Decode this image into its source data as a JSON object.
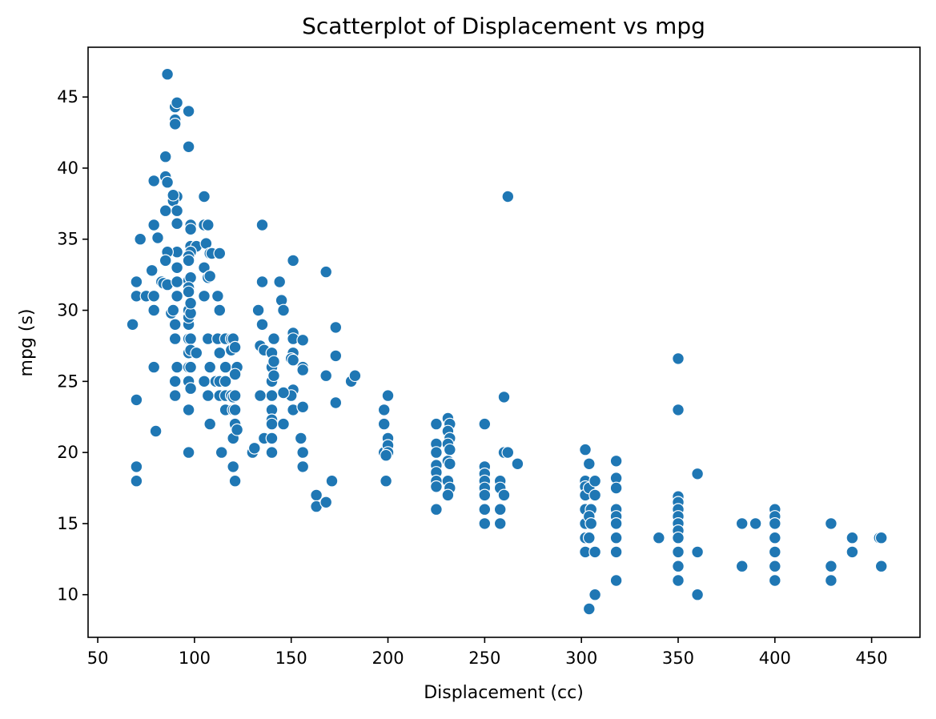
{
  "chart_data": {
    "type": "scatter",
    "title": "Scatterplot of Displacement vs mpg",
    "xlabel": "Displacement (cc)",
    "ylabel": "mpg (s)",
    "xlim": [
      45,
      475
    ],
    "ylim": [
      7,
      48.5
    ],
    "xticks": [
      50,
      100,
      150,
      200,
      250,
      300,
      350,
      400,
      450
    ],
    "yticks": [
      10,
      15,
      20,
      25,
      30,
      35,
      40,
      45
    ],
    "grid": false,
    "legend": "none",
    "point_color": "#1f77b4",
    "points": [
      [
        86,
        46.6
      ],
      [
        90,
        44.3
      ],
      [
        91,
        44.6
      ],
      [
        90,
        43.4
      ],
      [
        90,
        43.1
      ],
      [
        97,
        44
      ],
      [
        97,
        41.5
      ],
      [
        85,
        40.8
      ],
      [
        79,
        39.1
      ],
      [
        85,
        39.4
      ],
      [
        86,
        39
      ],
      [
        91,
        38
      ],
      [
        89,
        37.7
      ],
      [
        89,
        38.1
      ],
      [
        105,
        38
      ],
      [
        91,
        37
      ],
      [
        85,
        37
      ],
      [
        91,
        36.1
      ],
      [
        79,
        36
      ],
      [
        98,
        36
      ],
      [
        98,
        35.7
      ],
      [
        105,
        36
      ],
      [
        107,
        36
      ],
      [
        72,
        35
      ],
      [
        81,
        35.1
      ],
      [
        98,
        34.5
      ],
      [
        101,
        34.5
      ],
      [
        91,
        34.1
      ],
      [
        86,
        34.1
      ],
      [
        98,
        34.1
      ],
      [
        106,
        34.7
      ],
      [
        108,
        34
      ],
      [
        109,
        34
      ],
      [
        113,
        34
      ],
      [
        85,
        33.5
      ],
      [
        97,
        33.8
      ],
      [
        97,
        33.5
      ],
      [
        105,
        33
      ],
      [
        91,
        33
      ],
      [
        78,
        32.8
      ],
      [
        107,
        32.3
      ],
      [
        108,
        32.4
      ],
      [
        83,
        32
      ],
      [
        84,
        31.9
      ],
      [
        86,
        31.8
      ],
      [
        91,
        32
      ],
      [
        97,
        32.1
      ],
      [
        98,
        32.3
      ],
      [
        70,
        32
      ],
      [
        70,
        31
      ],
      [
        75,
        31
      ],
      [
        79,
        31
      ],
      [
        91,
        31
      ],
      [
        97,
        31.6
      ],
      [
        97,
        31.3
      ],
      [
        105,
        31
      ],
      [
        112,
        31
      ],
      [
        68,
        29
      ],
      [
        79,
        30
      ],
      [
        88,
        29.8
      ],
      [
        89,
        30
      ],
      [
        90,
        29
      ],
      [
        97,
        29
      ],
      [
        97,
        29.5
      ],
      [
        97,
        30
      ],
      [
        98,
        29.8
      ],
      [
        98,
        30.5
      ],
      [
        113,
        30
      ],
      [
        90,
        28
      ],
      [
        97,
        28
      ],
      [
        98,
        28
      ],
      [
        107,
        28
      ],
      [
        112,
        28
      ],
      [
        116,
        28
      ],
      [
        119,
        28
      ],
      [
        120,
        28
      ],
      [
        97,
        27
      ],
      [
        98,
        27.2
      ],
      [
        101,
        27
      ],
      [
        113,
        27
      ],
      [
        119,
        27.2
      ],
      [
        121,
        27.4
      ],
      [
        79,
        26
      ],
      [
        91,
        26
      ],
      [
        97,
        26
      ],
      [
        98,
        26
      ],
      [
        108,
        26
      ],
      [
        116,
        26
      ],
      [
        122,
        26
      ],
      [
        90,
        25
      ],
      [
        97,
        25
      ],
      [
        98,
        24.5
      ],
      [
        105,
        25
      ],
      [
        111,
        25
      ],
      [
        113,
        25
      ],
      [
        116,
        25
      ],
      [
        121,
        25.5
      ],
      [
        90,
        24
      ],
      [
        107,
        24
      ],
      [
        113,
        24
      ],
      [
        116,
        24
      ],
      [
        119,
        24
      ],
      [
        120,
        23.9
      ],
      [
        121,
        24
      ],
      [
        97,
        23
      ],
      [
        116,
        23
      ],
      [
        120,
        23
      ],
      [
        121,
        23
      ],
      [
        108,
        22
      ],
      [
        121,
        22
      ],
      [
        114,
        20
      ],
      [
        97,
        20
      ],
      [
        120,
        21
      ],
      [
        122,
        21.6
      ],
      [
        120,
        19
      ],
      [
        121,
        18
      ],
      [
        70,
        23.7
      ],
      [
        80,
        21.5
      ],
      [
        70,
        19
      ],
      [
        70,
        18
      ],
      [
        133,
        30
      ],
      [
        135,
        29
      ],
      [
        134,
        27.5
      ],
      [
        136,
        27.2
      ],
      [
        140,
        27
      ],
      [
        141,
        28
      ],
      [
        140,
        26
      ],
      [
        141,
        26.4
      ],
      [
        140,
        25
      ],
      [
        141,
        25.4
      ],
      [
        140,
        24
      ],
      [
        134,
        24
      ],
      [
        140,
        23
      ],
      [
        140,
        22.3
      ],
      [
        140,
        22
      ],
      [
        136,
        21
      ],
      [
        140,
        21
      ],
      [
        140,
        20
      ],
      [
        130,
        20
      ],
      [
        131,
        20.3
      ],
      [
        135,
        36
      ],
      [
        135,
        32
      ],
      [
        144,
        32
      ],
      [
        151,
        33.5
      ],
      [
        145,
        30.7
      ],
      [
        146,
        30
      ],
      [
        151,
        28.4
      ],
      [
        151,
        28
      ],
      [
        156,
        27.9
      ],
      [
        151,
        27
      ],
      [
        150,
        26.6
      ],
      [
        151,
        26.5
      ],
      [
        156,
        26
      ],
      [
        156,
        25.8
      ],
      [
        151,
        24.4
      ],
      [
        150,
        24
      ],
      [
        146,
        24.2
      ],
      [
        151,
        23
      ],
      [
        156,
        23.2
      ],
      [
        146,
        22
      ],
      [
        155,
        21
      ],
      [
        156,
        20
      ],
      [
        156,
        19
      ],
      [
        163,
        17
      ],
      [
        163,
        16.2
      ],
      [
        168,
        16.5
      ],
      [
        168,
        32.7
      ],
      [
        168,
        25.4
      ],
      [
        173,
        28.8
      ],
      [
        173,
        26.8
      ],
      [
        173,
        23.5
      ],
      [
        171,
        18
      ],
      [
        181,
        25
      ],
      [
        183,
        25.4
      ],
      [
        198,
        23
      ],
      [
        198,
        22
      ],
      [
        198,
        20
      ],
      [
        199,
        18
      ],
      [
        200,
        24
      ],
      [
        200,
        21
      ],
      [
        200,
        20.5
      ],
      [
        200,
        20
      ],
      [
        199,
        19.8
      ],
      [
        225,
        22
      ],
      [
        225,
        20.6
      ],
      [
        225,
        20
      ],
      [
        225,
        19.1
      ],
      [
        225,
        18.6
      ],
      [
        225,
        18
      ],
      [
        225,
        17.6
      ],
      [
        225,
        16
      ],
      [
        231,
        22.4
      ],
      [
        232,
        22
      ],
      [
        231,
        21.5
      ],
      [
        232,
        21
      ],
      [
        231,
        20.6
      ],
      [
        232,
        20.2
      ],
      [
        231,
        19.4
      ],
      [
        232,
        19.2
      ],
      [
        231,
        18
      ],
      [
        232,
        17.5
      ],
      [
        231,
        17
      ],
      [
        250,
        22
      ],
      [
        250,
        19
      ],
      [
        250,
        18.5
      ],
      [
        250,
        18
      ],
      [
        250,
        17.5
      ],
      [
        250,
        17
      ],
      [
        250,
        16
      ],
      [
        250,
        15
      ],
      [
        258,
        18
      ],
      [
        258,
        17.5
      ],
      [
        258,
        16
      ],
      [
        258,
        15
      ],
      [
        260,
        23.9
      ],
      [
        262,
        38
      ],
      [
        260,
        20
      ],
      [
        262,
        20
      ],
      [
        260,
        17
      ],
      [
        267,
        19.2
      ],
      [
        302,
        20.2
      ],
      [
        302,
        18
      ],
      [
        302,
        17.6
      ],
      [
        302,
        17
      ],
      [
        302,
        16
      ],
      [
        302,
        15
      ],
      [
        302,
        14
      ],
      [
        302,
        13
      ],
      [
        304,
        19.2
      ],
      [
        304,
        17.5
      ],
      [
        305,
        16
      ],
      [
        304,
        15.5
      ],
      [
        305,
        15
      ],
      [
        304,
        14
      ],
      [
        307,
        18
      ],
      [
        307,
        17
      ],
      [
        307,
        13
      ],
      [
        307,
        10
      ],
      [
        304,
        9
      ],
      [
        318,
        19.4
      ],
      [
        318,
        18.2
      ],
      [
        318,
        17.5
      ],
      [
        318,
        16
      ],
      [
        318,
        15.5
      ],
      [
        318,
        15
      ],
      [
        318,
        14
      ],
      [
        318,
        13
      ],
      [
        318,
        11
      ],
      [
        340,
        14
      ],
      [
        350,
        26.6
      ],
      [
        350,
        23
      ],
      [
        350,
        16.9
      ],
      [
        350,
        16.5
      ],
      [
        350,
        16
      ],
      [
        350,
        15.5
      ],
      [
        350,
        15
      ],
      [
        350,
        14.5
      ],
      [
        350,
        14
      ],
      [
        350,
        13
      ],
      [
        350,
        12
      ],
      [
        350,
        11
      ],
      [
        360,
        18.5
      ],
      [
        360,
        13
      ],
      [
        360,
        10
      ],
      [
        383,
        15
      ],
      [
        383,
        12
      ],
      [
        390,
        15
      ],
      [
        400,
        16
      ],
      [
        400,
        15.5
      ],
      [
        400,
        15
      ],
      [
        400,
        14
      ],
      [
        400,
        13
      ],
      [
        400,
        12
      ],
      [
        400,
        11
      ],
      [
        429,
        15
      ],
      [
        429,
        12
      ],
      [
        429,
        11
      ],
      [
        440,
        14
      ],
      [
        440,
        13
      ],
      [
        454,
        14
      ],
      [
        455,
        14
      ],
      [
        455,
        12
      ]
    ]
  }
}
